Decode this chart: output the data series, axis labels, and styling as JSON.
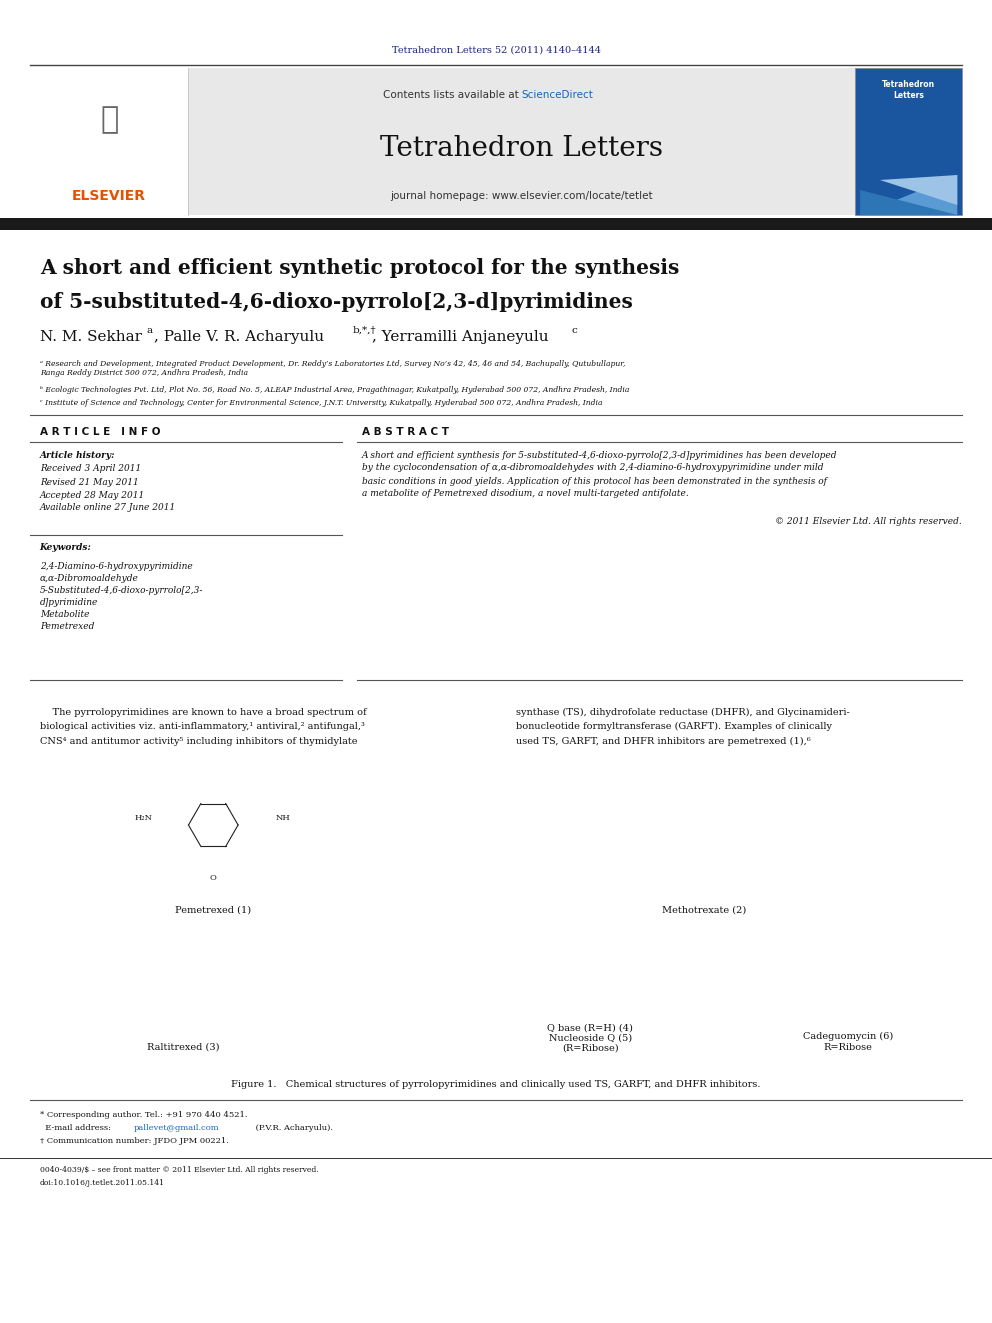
{
  "page_width": 9.92,
  "page_height": 13.23,
  "background_color": "#ffffff",
  "top_doi_text": "Tetrahedron Letters 52 (2011) 4140–4144",
  "top_doi_color": "#1a237e",
  "header_bg_color": "#e8e8e8",
  "header_title": "Tetrahedron Letters",
  "header_subtitle_sciencedirect_color": "#1565c0",
  "header_journal_homepage": "journal homepage: www.elsevier.com/locate/tetlet",
  "elsevier_text_color": "#e65100",
  "black_bar_color": "#1a1a1a",
  "article_title_line1": "A short and efficient synthetic protocol for the synthesis",
  "article_title_line2": "of 5-substituted-4,6-dioxo-pyrrolo[2,3-d]pyrimidines",
  "affil_a": "ᵃ Research and Development, Integrated Product Development, Dr. Reddy’s Laboratories Ltd, Survey No’s 42, 45, 46 and 54, Bachupally, Qutubullapur,\nRanga Reddy District 500 072, Andhra Pradesh, India",
  "affil_b": "ᵇ Ecologic Technologies Pvt. Ltd, Plot No. 56, Road No. 5, ALEAP Industrial Area, Pragathinagar, Kukatpally, Hyderabad 500 072, Andhra Pradesh, India",
  "affil_c": "ᶜ Institute of Science and Technology, Center for Environmental Science, J.N.T. University, Kukatpally, Hyderabad 500 072, Andhra Pradesh, India",
  "article_info_title": "A R T I C L E   I N F O",
  "abstract_title": "A B S T R A C T",
  "article_history_label": "Article history:",
  "received": "Received 3 April 2011",
  "revised": "Revised 21 May 2011",
  "accepted": "Accepted 28 May 2011",
  "available": "Available online 27 June 2011",
  "keywords_label": "Keywords:",
  "keywords": [
    "2,4-Diamino-6-hydroxypyrimidine",
    "α,α-Dibromoaldehyde",
    "5-Substituted-4,6-dioxo-pyrrolo[2,3-",
    "d]pyrimidine",
    "Metabolite",
    "Pemetrexed"
  ],
  "abstract_text": "A short and efficient synthesis for 5-substituted-4,6-dioxo-pyrrolo[2,3-d]pyrimidines has been developed\nby the cyclocondensation of α,α-dibromoaldehydes with 2,4-diamino-6-hydroxypyrimidine under mild\nbasic conditions in good yields. Application of this protocol has been demonstrated in the synthesis of\na metabolite of Pemetrexed disodium, a novel multi-targeted antifolate.",
  "copyright": "© 2011 Elsevier Ltd. All rights reserved.",
  "body_col1_lines": [
    "    The pyrrolopyrimidines are known to have a broad spectrum of",
    "biological activities viz. anti-inflammatory,¹ antiviral,² antifungal,³",
    "CNS⁴ and antitumor activity⁵ including inhibitors of thymidylate"
  ],
  "body_col2_lines": [
    "synthase (TS), dihydrofolate reductase (DHFR), and Glycinamideri-",
    "bonucleotide formyltransferase (GARFT). Examples of clinically",
    "used TS, GARFT, and DHFR inhibitors are pemetrexed (1),⁶"
  ],
  "figure1_caption": "Figure 1.   Chemical structures of pyrrolopyrimidines and clinically used TS, GARFT, and DHFR inhibitors.",
  "footer_corresponding": "* Corresponding author. Tel.: +91 970 440 4521.",
  "footer_email_pre": "  E-mail address: ",
  "footer_email_link": "pallevet@gmail.com",
  "footer_email_post": " (P.V.R. Acharyulu).",
  "footer_communication": "† Communication number: JFDO JPM 00221.",
  "footer_issn": "0040-4039/$ – see front matter © 2011 Elsevier Ltd. All rights reserved.",
  "footer_doi": "doi:10.1016/j.tetlet.2011.05.141",
  "link_color": "#1565c0"
}
